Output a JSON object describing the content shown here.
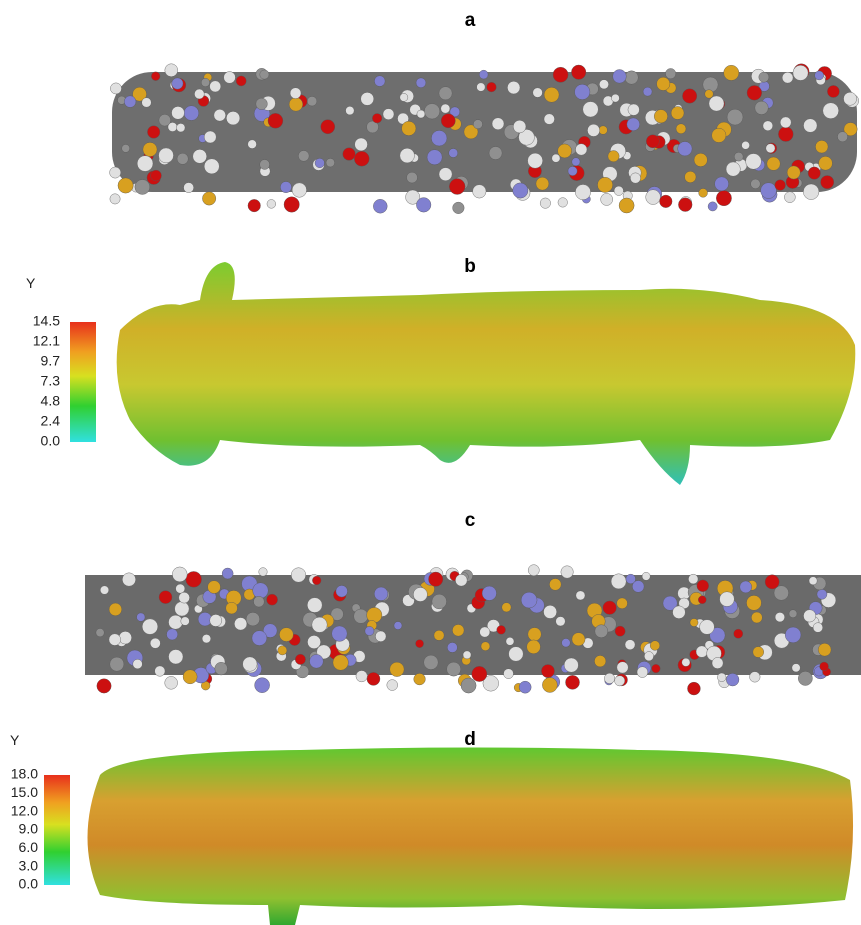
{
  "panels": [
    {
      "label": "a"
    },
    {
      "label": "b",
      "colorbar": {
        "title": "Y",
        "ticks": [
          "14.5",
          "12.1",
          "9.7",
          "7.3",
          "4.8",
          "2.4",
          "0.0"
        ]
      }
    },
    {
      "label": "c"
    },
    {
      "label": "d",
      "colorbar": {
        "title": "Y",
        "ticks": [
          "18.0",
          "15.0",
          "12.0",
          "9.0",
          "6.0",
          "3.0",
          "0.0"
        ]
      }
    }
  ]
}
